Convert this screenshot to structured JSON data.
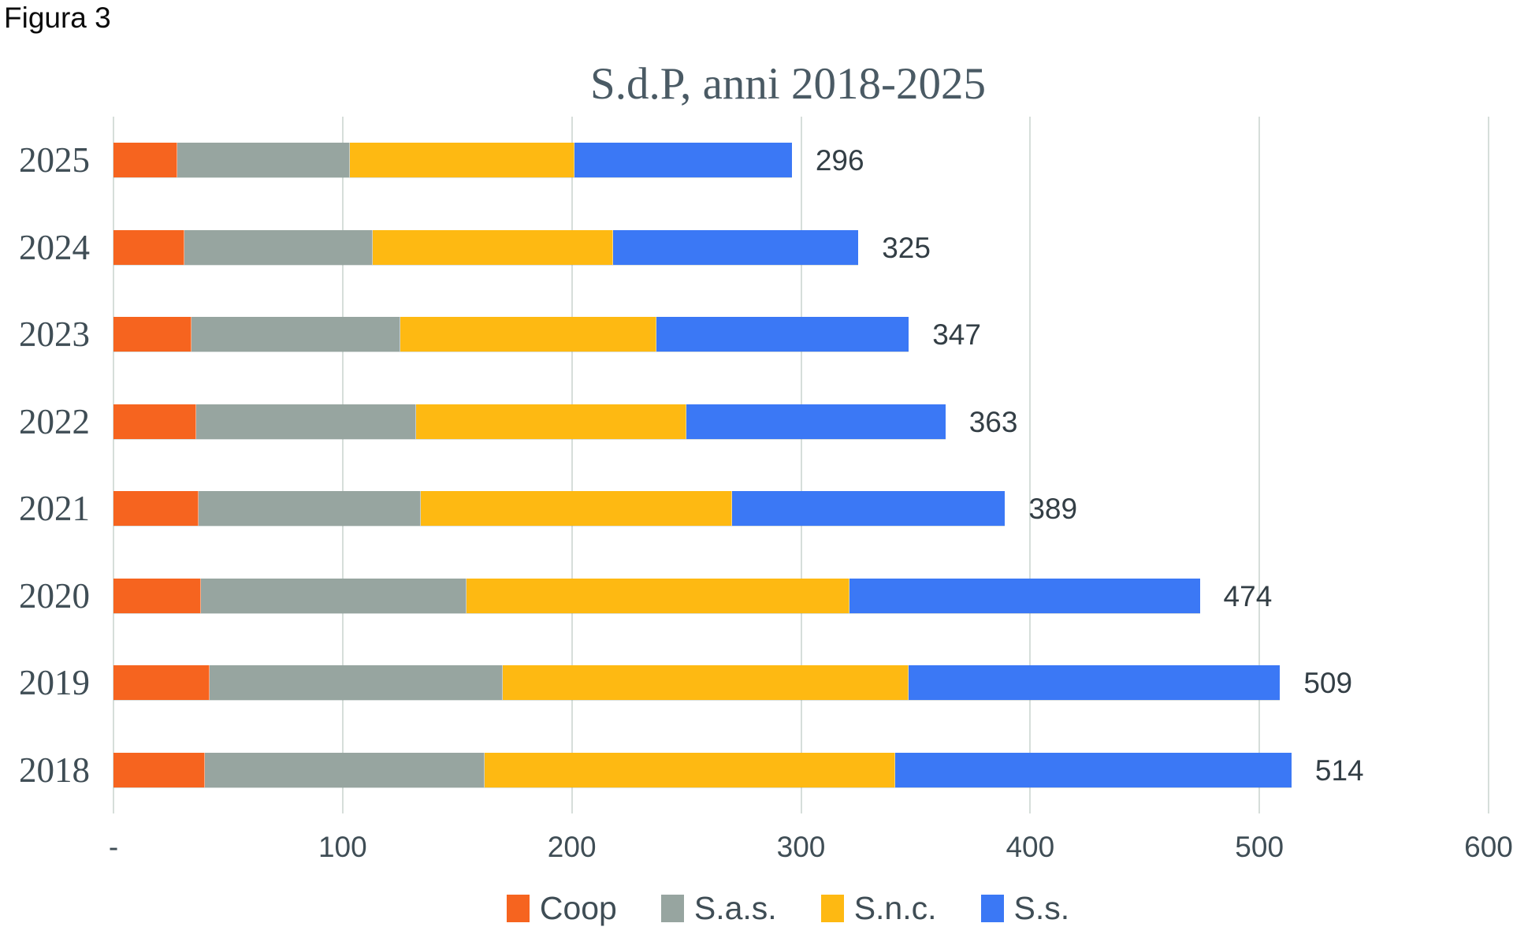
{
  "figure_label": "Figura 3",
  "chart_data": {
    "type": "bar",
    "orientation": "horizontal",
    "stacked": true,
    "title": "S.d.P, anni 2018-2025",
    "categories": [
      "2025",
      "2024",
      "2023",
      "2022",
      "2021",
      "2020",
      "2019",
      "2018"
    ],
    "series": [
      {
        "name": "Coop",
        "color": "#f6641f",
        "values": [
          28,
          31,
          34,
          36,
          37,
          38,
          42,
          40
        ]
      },
      {
        "name": "S.a.s.",
        "color": "#97a5a0",
        "values": [
          75,
          82,
          91,
          96,
          97,
          116,
          128,
          122
        ]
      },
      {
        "name": "S.n.c.",
        "color": "#feb912",
        "values": [
          98,
          105,
          112,
          118,
          136,
          167,
          177,
          179
        ]
      },
      {
        "name": "S.s.",
        "color": "#3b78f5",
        "values": [
          95,
          107,
          110,
          113,
          119,
          153,
          162,
          173
        ]
      }
    ],
    "totals": [
      296,
      325,
      347,
      363,
      389,
      474,
      509,
      514
    ],
    "x_ticks": {
      "labels": [
        "-",
        "100",
        "200",
        "300",
        "400",
        "500",
        "600"
      ],
      "values": [
        0,
        100,
        200,
        300,
        400,
        500,
        600
      ]
    },
    "x_max": 600,
    "grid": "vertical",
    "gridline_color": "#d6deda",
    "legend_position": "bottom",
    "text_color": "#3f4d55",
    "title_color": "#4a5a64"
  }
}
